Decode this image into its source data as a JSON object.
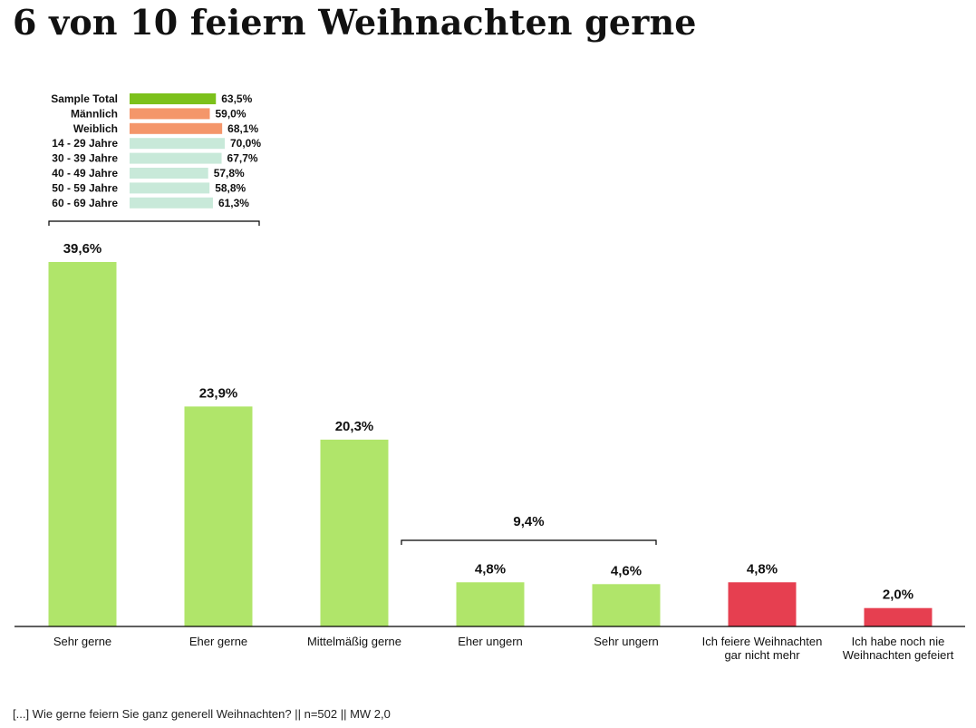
{
  "title": "6 von 10 feiern Weihnachten gerne",
  "footnote": "[...] Wie gerne feiern Sie ganz generell Weihnachten? || n=502 || MW 2,0",
  "colors": {
    "positive": "#b0e56a",
    "negative": "#e63f50",
    "total": "#7cc11b",
    "gender": "#f4966a",
    "age": "#c8e9d9"
  },
  "chart_data": [
    {
      "type": "bar",
      "title": "6 von 10 feiern Weihnachten gerne",
      "xlabel": "",
      "ylabel": "",
      "ylim": [
        0,
        40
      ],
      "categories": [
        "Sehr gerne",
        "Eher gerne",
        "Mittelmäßig gerne",
        "Eher ungern",
        "Sehr ungern",
        "Ich feiere Weihnachten gar nicht mehr",
        "Ich habe noch nie Weihnachten gefeiert"
      ],
      "category_lines": [
        [
          "Sehr gerne"
        ],
        [
          "Eher gerne"
        ],
        [
          "Mittelmäßig gerne"
        ],
        [
          "Eher ungern"
        ],
        [
          "Sehr ungern"
        ],
        [
          "Ich feiere Weihnachten",
          "gar nicht mehr"
        ],
        [
          "Ich habe noch nie",
          "Weihnachten gefeiert"
        ]
      ],
      "values": [
        39.6,
        23.9,
        20.3,
        4.8,
        4.6,
        4.8,
        2.0
      ],
      "value_labels": [
        "39,6%",
        "23,9%",
        "20,3%",
        "4,8%",
        "4,6%",
        "4,8%",
        "2,0%"
      ],
      "bar_color_keys": [
        "positive",
        "positive",
        "positive",
        "positive",
        "positive",
        "negative",
        "negative"
      ],
      "annotations": [
        {
          "label": "9,4%",
          "spans": [
            "Eher ungern",
            "Sehr ungern"
          ]
        }
      ],
      "grid": false,
      "legend": "none"
    },
    {
      "type": "bar",
      "orientation": "horizontal",
      "title": "",
      "subgroup_of": [
        "Sehr gerne",
        "Eher gerne"
      ],
      "xlim": [
        0,
        100
      ],
      "categories": [
        "Sample Total",
        "Männlich",
        "Weiblich",
        "14 - 29 Jahre",
        "30 - 39 Jahre",
        "40 - 49 Jahre",
        "50 - 59 Jahre",
        "60 - 69 Jahre"
      ],
      "values": [
        63.5,
        59.0,
        68.1,
        70.0,
        67.7,
        57.8,
        58.8,
        61.3
      ],
      "value_labels": [
        "63,5%",
        "59,0%",
        "68,1%",
        "70,0%",
        "67,7%",
        "57,8%",
        "58,8%",
        "61,3%"
      ],
      "bar_color_keys": [
        "total",
        "gender",
        "gender",
        "age",
        "age",
        "age",
        "age",
        "age"
      ]
    }
  ]
}
